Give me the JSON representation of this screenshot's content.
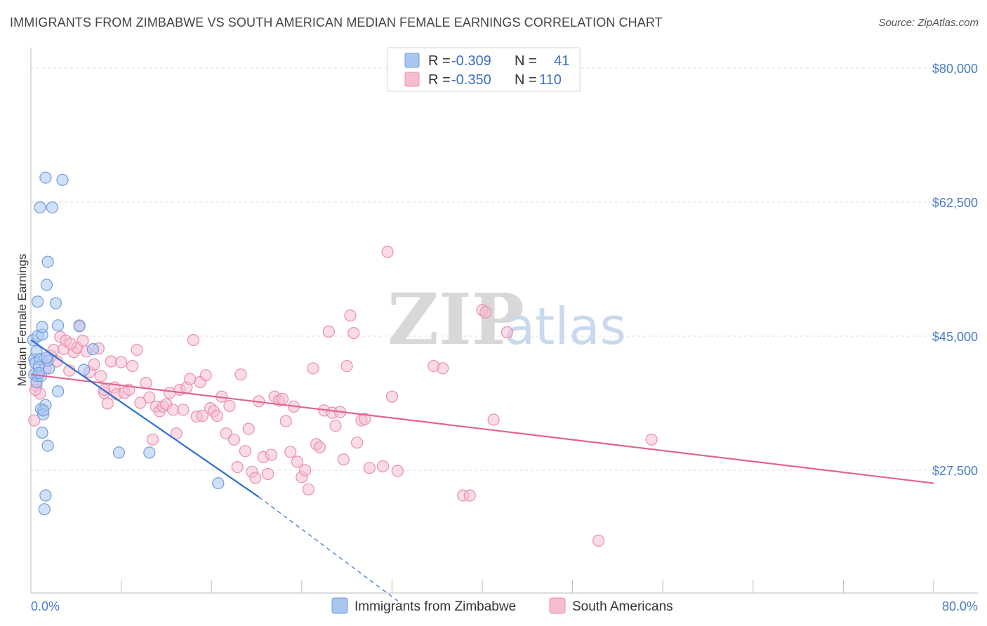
{
  "title": "IMMIGRANTS FROM ZIMBABWE VS SOUTH AMERICAN MEDIAN FEMALE EARNINGS CORRELATION CHART",
  "source": "Source: ZipAtlas.com",
  "watermark": {
    "zip": "ZIP",
    "atlas": "atlas"
  },
  "colors": {
    "blue_fill": "#a9c6ef",
    "blue_stroke": "#6f9de0",
    "blue_line": "#2f6fd0",
    "pink_fill": "#f6bdd1",
    "pink_stroke": "#e98fb0",
    "pink_line": "#e2648f",
    "grid": "#dddddd",
    "axis_text": "#4a7cc7"
  },
  "legend": {
    "rows": [
      {
        "r_label": "R =",
        "r_value": "-0.309",
        "n_label": "N =",
        "n_value": "41",
        "series": "blue"
      },
      {
        "r_label": "R =",
        "r_value": "-0.350",
        "n_label": "N =",
        "n_value": "110",
        "series": "pink"
      }
    ]
  },
  "chart_data": {
    "type": "scatter",
    "title": "IMMIGRANTS FROM ZIMBABWE VS SOUTH AMERICAN MEDIAN FEMALE EARNINGS CORRELATION CHART",
    "xlabel": "",
    "ylabel": "Median Female Earnings",
    "xlim": [
      0,
      80
    ],
    "ylim": [
      10000,
      82000
    ],
    "x_tick_labels": [
      "0.0%",
      "80.0%"
    ],
    "y_ticks": [
      27500,
      45000,
      62500,
      80000
    ],
    "y_tick_labels": [
      "$27,500",
      "$45,000",
      "$62,500",
      "$80,000"
    ],
    "grid": true,
    "legend_position": "top-center",
    "series": [
      {
        "name": "Immigrants from Zimbabwe",
        "color": "blue",
        "points": [
          [
            0.2,
            44500
          ],
          [
            0.3,
            42000
          ],
          [
            0.4,
            41500
          ],
          [
            0.3,
            40000
          ],
          [
            0.5,
            39000
          ],
          [
            0.6,
            45000
          ],
          [
            0.5,
            43000
          ],
          [
            0.6,
            39800
          ],
          [
            0.8,
            42000
          ],
          [
            0.7,
            41000
          ],
          [
            0.9,
            39800
          ],
          [
            1.0,
            45200
          ],
          [
            1.0,
            46200
          ],
          [
            0.6,
            49500
          ],
          [
            0.9,
            35500
          ],
          [
            1.1,
            34800
          ],
          [
            1.3,
            36000
          ],
          [
            1.0,
            32400
          ],
          [
            1.5,
            30700
          ],
          [
            1.3,
            24200
          ],
          [
            1.2,
            22400
          ],
          [
            1.6,
            40800
          ],
          [
            1.5,
            41800
          ],
          [
            1.4,
            42200
          ],
          [
            1.4,
            51700
          ],
          [
            1.5,
            54700
          ],
          [
            1.3,
            65700
          ],
          [
            0.8,
            61800
          ],
          [
            1.9,
            61800
          ],
          [
            2.2,
            49300
          ],
          [
            2.4,
            46400
          ],
          [
            2.4,
            37800
          ],
          [
            2.8,
            65400
          ],
          [
            4.3,
            46300
          ],
          [
            5.5,
            43300
          ],
          [
            4.7,
            40600
          ],
          [
            7.8,
            29800
          ],
          [
            10.5,
            29800
          ],
          [
            16.6,
            25800
          ],
          [
            0.7,
            40200
          ],
          [
            1.1,
            35300
          ]
        ]
      },
      {
        "name": "South Americans",
        "color": "pink",
        "points": [
          [
            0.3,
            34000
          ],
          [
            0.5,
            38500
          ],
          [
            0.8,
            37500
          ],
          [
            1.3,
            40800
          ],
          [
            1.8,
            42400
          ],
          [
            2.0,
            43200
          ],
          [
            2.3,
            41700
          ],
          [
            2.6,
            44900
          ],
          [
            2.9,
            43300
          ],
          [
            3.1,
            44400
          ],
          [
            3.4,
            40500
          ],
          [
            3.8,
            42900
          ],
          [
            4.1,
            43500
          ],
          [
            4.3,
            46400
          ],
          [
            4.6,
            44400
          ],
          [
            4.9,
            43000
          ],
          [
            5.2,
            40300
          ],
          [
            5.6,
            41300
          ],
          [
            6.0,
            43400
          ],
          [
            6.2,
            39800
          ],
          [
            6.5,
            37600
          ],
          [
            6.8,
            36200
          ],
          [
            7.1,
            41700
          ],
          [
            7.4,
            38300
          ],
          [
            7.6,
            37400
          ],
          [
            8.0,
            41600
          ],
          [
            8.3,
            37600
          ],
          [
            8.7,
            38000
          ],
          [
            9.0,
            41100
          ],
          [
            9.4,
            43200
          ],
          [
            9.7,
            36300
          ],
          [
            10.2,
            38900
          ],
          [
            10.5,
            37000
          ],
          [
            10.8,
            31500
          ],
          [
            11.1,
            35800
          ],
          [
            11.4,
            35200
          ],
          [
            11.7,
            35800
          ],
          [
            12.0,
            36100
          ],
          [
            12.3,
            37600
          ],
          [
            12.6,
            35400
          ],
          [
            12.9,
            32300
          ],
          [
            13.2,
            38000
          ],
          [
            13.5,
            35400
          ],
          [
            13.8,
            38300
          ],
          [
            14.1,
            39400
          ],
          [
            14.4,
            44500
          ],
          [
            14.7,
            34500
          ],
          [
            15.0,
            39000
          ],
          [
            15.2,
            34600
          ],
          [
            15.5,
            39900
          ],
          [
            15.9,
            35600
          ],
          [
            16.2,
            35200
          ],
          [
            16.5,
            34600
          ],
          [
            16.9,
            37100
          ],
          [
            17.3,
            32300
          ],
          [
            17.6,
            35900
          ],
          [
            18.0,
            31500
          ],
          [
            18.3,
            27900
          ],
          [
            18.6,
            40000
          ],
          [
            19.0,
            30000
          ],
          [
            19.3,
            32900
          ],
          [
            19.6,
            27300
          ],
          [
            19.9,
            26500
          ],
          [
            20.2,
            36500
          ],
          [
            20.6,
            29200
          ],
          [
            21.0,
            27000
          ],
          [
            21.3,
            29500
          ],
          [
            21.6,
            37100
          ],
          [
            22.0,
            36600
          ],
          [
            22.3,
            36800
          ],
          [
            22.6,
            33900
          ],
          [
            23.0,
            29900
          ],
          [
            23.3,
            35800
          ],
          [
            23.6,
            28600
          ],
          [
            24.0,
            26600
          ],
          [
            24.3,
            27500
          ],
          [
            24.6,
            25000
          ],
          [
            25.0,
            40800
          ],
          [
            25.3,
            30900
          ],
          [
            25.6,
            30500
          ],
          [
            26.0,
            35300
          ],
          [
            26.4,
            45600
          ],
          [
            26.7,
            35000
          ],
          [
            27.0,
            33300
          ],
          [
            27.4,
            35100
          ],
          [
            27.7,
            28900
          ],
          [
            28.0,
            41100
          ],
          [
            28.3,
            47700
          ],
          [
            28.6,
            45400
          ],
          [
            28.9,
            31100
          ],
          [
            29.3,
            34000
          ],
          [
            29.6,
            34200
          ],
          [
            30.0,
            27800
          ],
          [
            31.2,
            28000
          ],
          [
            31.6,
            56000
          ],
          [
            32.0,
            37100
          ],
          [
            32.5,
            27400
          ],
          [
            35.7,
            41100
          ],
          [
            36.5,
            40800
          ],
          [
            38.3,
            24200
          ],
          [
            38.9,
            24200
          ],
          [
            40.0,
            48400
          ],
          [
            40.3,
            48100
          ],
          [
            41.0,
            34100
          ],
          [
            42.2,
            45500
          ],
          [
            55.0,
            31500
          ],
          [
            50.3,
            18300
          ],
          [
            0.4,
            38000
          ],
          [
            3.5,
            44000
          ],
          [
            6.5,
            38000
          ]
        ]
      }
    ],
    "trendlines": [
      {
        "series": "Immigrants from Zimbabwe",
        "from": [
          0,
          44500
        ],
        "to": [
          20.2,
          24000
        ],
        "dashed_to": [
          32.9,
          10000
        ]
      },
      {
        "series": "South Americans",
        "from": [
          0,
          40000
        ],
        "to": [
          80,
          25800
        ]
      }
    ]
  },
  "bottom_legend": [
    {
      "label": "Immigrants from Zimbabwe",
      "series": "blue"
    },
    {
      "label": "South Americans",
      "series": "pink"
    }
  ]
}
